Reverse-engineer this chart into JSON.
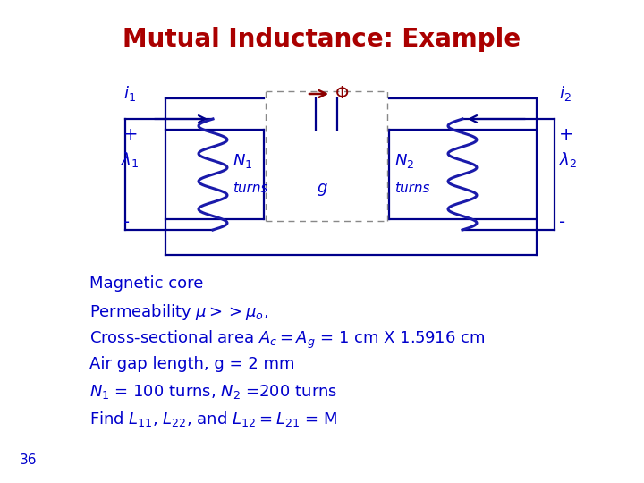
{
  "title": "Mutual Inductance: Example",
  "title_color": "#aa0000",
  "title_fontsize": 20,
  "bg_color": "#ffffff",
  "text_color": "#0000cc",
  "body_lines": [
    "Magnetic core",
    "Permeability $\\mu >> \\mu_o$,",
    "Cross-sectional area $A_c = A_g$ = 1 cm X 1.5916 cm",
    "Air gap length, g = 2 mm",
    "$N_1$ = 100 turns, $N_2$ =200 turns",
    "Find $L_{11}$, $L_{22}$, and $L_{12} = L_{21}$ = M"
  ],
  "footnote": "36",
  "core_color": "#00008B",
  "coil_color": "#1a1aaa",
  "wire_color": "#00008B",
  "phi_color": "#8b0000",
  "dash_color": "#888888"
}
